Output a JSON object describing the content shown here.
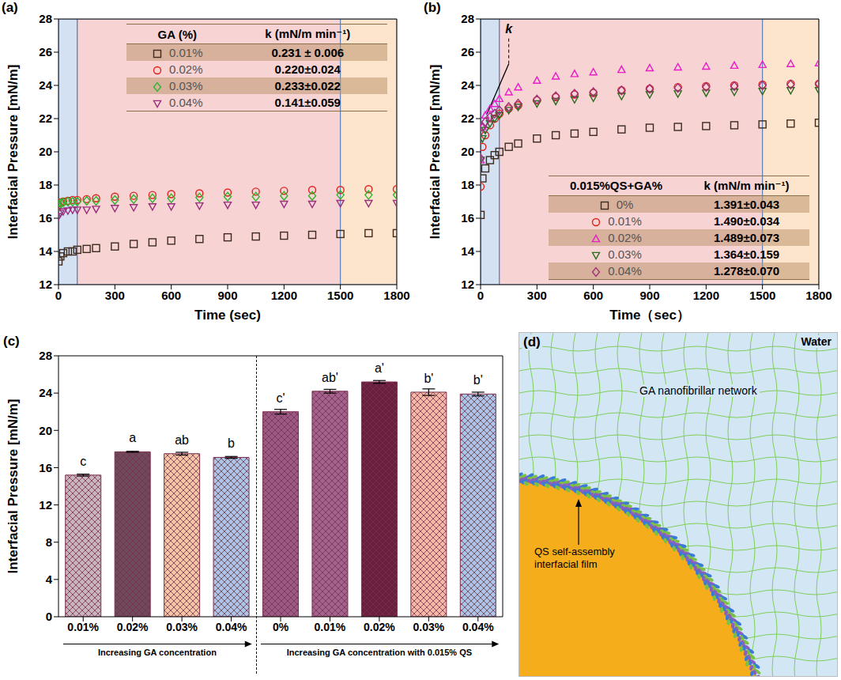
{
  "chart_data": [
    {
      "type": "scatter",
      "panel": "(a)",
      "x_label": "Time (sec)",
      "y_label": "Interfacial Pressure [mN/m]",
      "xlim": [
        0,
        1800
      ],
      "xticks": [
        0,
        300,
        600,
        900,
        1200,
        1500,
        1800
      ],
      "ylim": [
        12,
        28
      ],
      "yticks": [
        12,
        14,
        16,
        18,
        20,
        22,
        24,
        26,
        28
      ],
      "regions": [
        {
          "x0": 0,
          "x1": 100,
          "color": "#a9c4e6"
        },
        {
          "x0": 100,
          "x1": 1500,
          "color": "#f0a8a8"
        },
        {
          "x0": 1500,
          "x1": 1800,
          "color": "#fbc99a"
        }
      ],
      "legend": "upper right",
      "table_header": [
        "GA (%)",
        "k (mN/m min⁻¹)"
      ],
      "x": [
        0,
        10,
        25,
        50,
        75,
        100,
        150,
        200,
        300,
        400,
        500,
        600,
        750,
        900,
        1050,
        1200,
        1350,
        1500,
        1650,
        1800
      ],
      "series": [
        {
          "name": "0.01%",
          "color": "#3d2b1f",
          "marker": "square",
          "k": "0.231 ± 0.006",
          "values": [
            13.4,
            13.7,
            13.9,
            14.0,
            14.0,
            14.1,
            14.15,
            14.2,
            14.3,
            14.45,
            14.55,
            14.65,
            14.75,
            14.85,
            14.9,
            14.95,
            15.0,
            15.05,
            15.1,
            15.1
          ]
        },
        {
          "name": "0.02%",
          "color": "#e0201b",
          "marker": "circle",
          "k": "0.220±0.024",
          "values": [
            16.8,
            16.95,
            17.0,
            17.05,
            17.1,
            17.1,
            17.15,
            17.2,
            17.3,
            17.35,
            17.4,
            17.45,
            17.5,
            17.55,
            17.6,
            17.65,
            17.7,
            17.7,
            17.75,
            17.75
          ]
        },
        {
          "name": "0.03%",
          "color": "#2fb52f",
          "marker": "diamond",
          "k": "0.233±0.022",
          "values": [
            16.7,
            16.9,
            16.95,
            17.0,
            17.0,
            17.0,
            17.05,
            17.05,
            17.1,
            17.15,
            17.2,
            17.2,
            17.25,
            17.3,
            17.3,
            17.35,
            17.35,
            17.4,
            17.4,
            17.4
          ]
        },
        {
          "name": "0.04%",
          "color": "#9b2f7f",
          "marker": "triangle-down",
          "k": "0.141±0.059",
          "values": [
            16.1,
            16.3,
            16.4,
            16.45,
            16.5,
            16.5,
            16.5,
            16.55,
            16.6,
            16.65,
            16.7,
            16.7,
            16.75,
            16.8,
            16.8,
            16.85,
            16.85,
            16.9,
            16.9,
            16.9
          ]
        }
      ]
    },
    {
      "type": "scatter",
      "panel": "(b)",
      "x_label": "Time（sec）",
      "y_label": "Interfacial Pressure [mN/m]",
      "xlim": [
        0,
        1800
      ],
      "xticks": [
        0,
        300,
        600,
        900,
        1200,
        1500,
        1800
      ],
      "ylim": [
        12,
        28
      ],
      "yticks": [
        12,
        14,
        16,
        18,
        20,
        22,
        24,
        26,
        28
      ],
      "regions": [
        {
          "x0": 0,
          "x1": 100,
          "color": "#a9c4e6"
        },
        {
          "x0": 100,
          "x1": 1500,
          "color": "#f0a8a8"
        },
        {
          "x0": 1500,
          "x1": 1800,
          "color": "#fbc99a"
        }
      ],
      "legend": "lower right",
      "table_header": [
        "0.015%QS+GA%",
        "k (mN/m min⁻¹)"
      ],
      "tangent": {
        "x": [
          35,
          150
        ],
        "y": [
          22.3,
          25.3
        ]
      },
      "annotations": [
        {
          "text": "k",
          "x": 150,
          "y": 26.9
        }
      ],
      "x": [
        0,
        10,
        25,
        50,
        75,
        100,
        150,
        200,
        300,
        400,
        500,
        600,
        750,
        900,
        1050,
        1200,
        1350,
        1500,
        1650,
        1800
      ],
      "series": [
        {
          "name": "0%",
          "color": "#3d2b1f",
          "marker": "square",
          "k": "1.391±0.043",
          "values": [
            16.2,
            18.4,
            19.0,
            19.5,
            19.8,
            20.0,
            20.3,
            20.5,
            20.8,
            21.0,
            21.1,
            21.2,
            21.35,
            21.45,
            21.5,
            21.55,
            21.6,
            21.65,
            21.7,
            21.75
          ]
        },
        {
          "name": "0.01%",
          "color": "#e0201b",
          "marker": "circle",
          "k": "1.490±0.034",
          "values": [
            17.9,
            20.3,
            21.0,
            21.6,
            22.0,
            22.3,
            22.6,
            22.8,
            23.1,
            23.3,
            23.45,
            23.55,
            23.7,
            23.8,
            23.9,
            23.95,
            24.0,
            24.05,
            24.1,
            24.1
          ]
        },
        {
          "name": "0.02%",
          "color": "#e81ec8",
          "marker": "triangle-up",
          "k": "1.489±0.073",
          "values": [
            19.5,
            21.5,
            22.2,
            22.6,
            22.9,
            23.2,
            23.6,
            23.9,
            24.3,
            24.55,
            24.7,
            24.8,
            24.95,
            25.05,
            25.1,
            25.15,
            25.2,
            25.25,
            25.3,
            25.35
          ]
        },
        {
          "name": "0.03%",
          "color": "#2d6b1f",
          "marker": "triangle-down",
          "k": "1.364±0.159",
          "values": [
            19.5,
            20.8,
            21.3,
            21.7,
            22.0,
            22.2,
            22.5,
            22.7,
            22.9,
            23.05,
            23.15,
            23.25,
            23.35,
            23.45,
            23.5,
            23.55,
            23.6,
            23.65,
            23.7,
            23.7
          ]
        },
        {
          "name": "0.04%",
          "color": "#a0307a",
          "marker": "diamond",
          "k": "1.278±0.070",
          "values": [
            19.6,
            21.5,
            21.8,
            22.1,
            22.3,
            22.5,
            22.7,
            22.9,
            23.15,
            23.35,
            23.5,
            23.6,
            23.7,
            23.8,
            23.85,
            23.9,
            23.95,
            24.0,
            24.05,
            24.1
          ]
        }
      ]
    },
    {
      "type": "bar",
      "panel": "(c)",
      "y_label": "Interfacial Pressure [mN/m]",
      "categories": [
        "0.01%",
        "0.02%",
        "0.03%",
        "0.04%",
        "0%",
        "0.01%",
        "0.02%",
        "0.03%",
        "0.04%"
      ],
      "values": [
        15.2,
        17.7,
        17.5,
        17.1,
        22.0,
        24.2,
        25.2,
        24.1,
        23.9
      ],
      "errors": [
        0.1,
        0.05,
        0.15,
        0.1,
        0.25,
        0.2,
        0.15,
        0.35,
        0.2
      ],
      "letters": [
        "c",
        "a",
        "ab",
        "b",
        "c'",
        "ab'",
        "a'",
        "b'",
        "b'"
      ],
      "colors": [
        "#c9b3bd",
        "#6e4a5c",
        "#f2c6a4",
        "#a9c6e6",
        "#9b5a86",
        "#a2648e",
        "#6a1f3e",
        "#f4b9a6",
        "#a9c6e6"
      ],
      "ylim": [
        0,
        28
      ],
      "yticks": [
        0,
        4,
        8,
        12,
        16,
        20,
        24,
        28
      ],
      "groups": [
        {
          "label": "Increasing GA concentration",
          "count": 4
        },
        {
          "label": "Increasing GA concentration with 0.015% QS",
          "count": 5
        }
      ]
    }
  ],
  "diagram": {
    "panel": "(d)",
    "labels": {
      "water": "Water",
      "network": "GA nanofibrillar network",
      "film": "QS self-assembly interfacial film"
    }
  }
}
